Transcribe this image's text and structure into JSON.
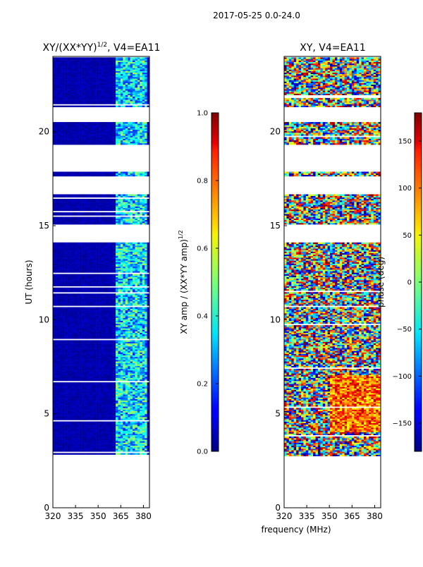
{
  "figure": {
    "suptitle": "2017-05-25 0.0-24.0"
  },
  "chart_data": [
    {
      "type": "heatmap",
      "title": "XY/(XX*YY)",
      "title_exponent": "1/2",
      "title_suffix": ", V4=EA11",
      "xlabel": "",
      "ylabel": "UT (hours)",
      "xlim": [
        320,
        384
      ],
      "ylim": [
        0,
        24
      ],
      "xticks": [
        320,
        335,
        350,
        365,
        380
      ],
      "yticks": [
        0,
        5,
        10,
        15,
        20
      ],
      "colormap": "jet",
      "data_rows_ut_hours": [
        2.75,
        23.9
      ],
      "gaps_ut_hours": [
        [
          14.1,
          15.0
        ],
        [
          16.6,
          17.6
        ],
        [
          17.8,
          19.3
        ],
        [
          20.5,
          21.3
        ]
      ],
      "colorbar": {
        "label": "XY amp / (XX*YY amp)",
        "label_exponent": "1/2",
        "range": [
          0.0,
          1.0
        ],
        "ticks": [
          "0.0",
          "0.2",
          "0.4",
          "0.6",
          "0.8",
          "1.0"
        ]
      }
    },
    {
      "type": "heatmap",
      "title": "XY, V4=EA11",
      "xlabel": "frequency (MHz)",
      "ylabel": "",
      "xlim": [
        320,
        384
      ],
      "ylim": [
        0,
        24
      ],
      "xticks": [
        320,
        335,
        350,
        365,
        380
      ],
      "yticks": [
        0,
        5,
        10,
        15,
        20
      ],
      "colormap": "jet",
      "data_rows_ut_hours": [
        2.75,
        23.9
      ],
      "gaps_ut_hours": [
        [
          14.1,
          15.0
        ],
        [
          16.6,
          17.6
        ],
        [
          17.8,
          19.3
        ],
        [
          20.5,
          21.3
        ]
      ],
      "colorbar": {
        "label": "phase (deg)",
        "range": [
          -180,
          180
        ],
        "ticks": [
          "−150",
          "−100",
          "−50",
          "0",
          "50",
          "100",
          "150"
        ]
      }
    }
  ]
}
